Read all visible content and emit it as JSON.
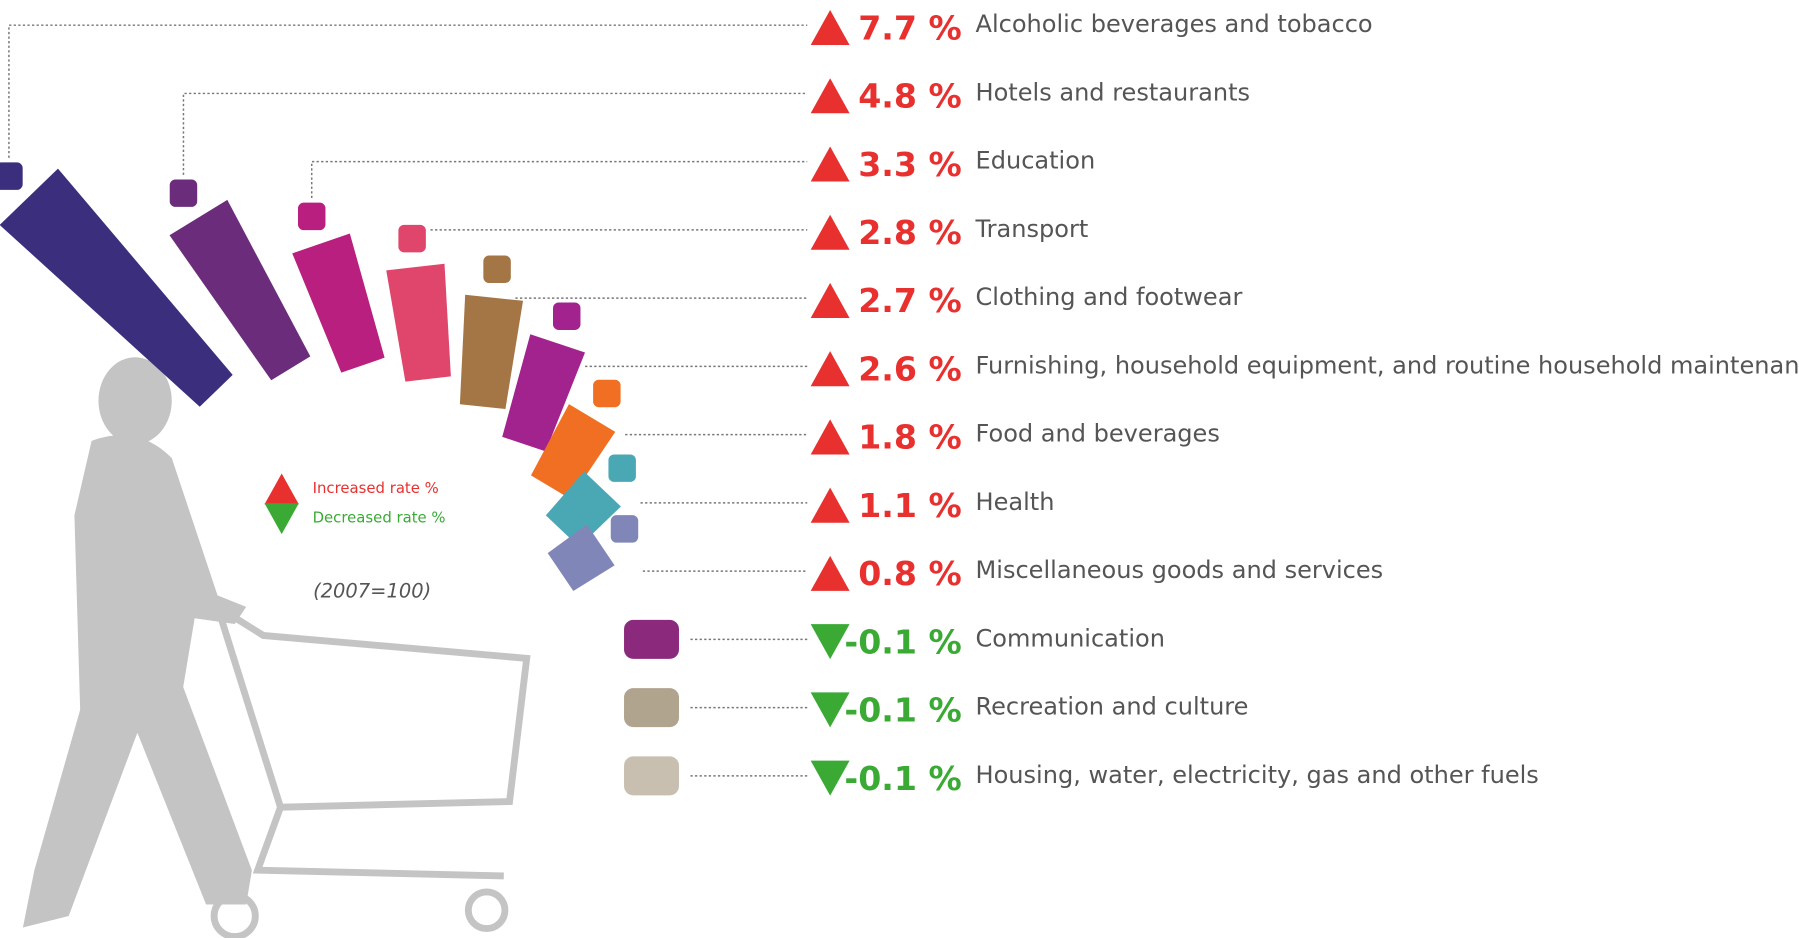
{
  "chart_data": {
    "type": "radial-bar",
    "categories": [
      "Alcoholic beverages and tobacco",
      "Hotels and restaurants",
      "Education",
      "Transport",
      "Clothing and footwear",
      "Furnishing, household equipment, and routine household maintenance",
      "Food and beverages",
      "Health",
      "Miscellaneous goods and services",
      "Communication",
      "Recreation and culture",
      "Housing, water, electricity, gas and other fuels"
    ],
    "values": [
      7.7,
      4.8,
      3.3,
      2.8,
      2.7,
      2.6,
      1.8,
      1.1,
      0.8,
      -0.1,
      -0.1,
      -0.1
    ],
    "value_labels": [
      "7.7 %",
      "4.8 %",
      "3.3 %",
      "2.8 %",
      "2.7 %",
      "2.6 %",
      "1.8 %",
      "1.1 %",
      "0.8 %",
      "-0.1 %",
      "-0.1 %",
      "-0.1 %"
    ],
    "colors": [
      "#3a2e7d",
      "#6b2d7b",
      "#b81f7f",
      "#e0466b",
      "#a47646",
      "#a2238d",
      "#f06f22",
      "#4aa8b5",
      "#8087b8",
      "#8b2a7d",
      "#b0a48e",
      "#c8bfb0"
    ],
    "legend": [
      "Increased rate %",
      "Decreased rate %"
    ],
    "increase_color": "#e8312f",
    "decrease_color": "#3aaa35",
    "note": "(2007=100)"
  }
}
